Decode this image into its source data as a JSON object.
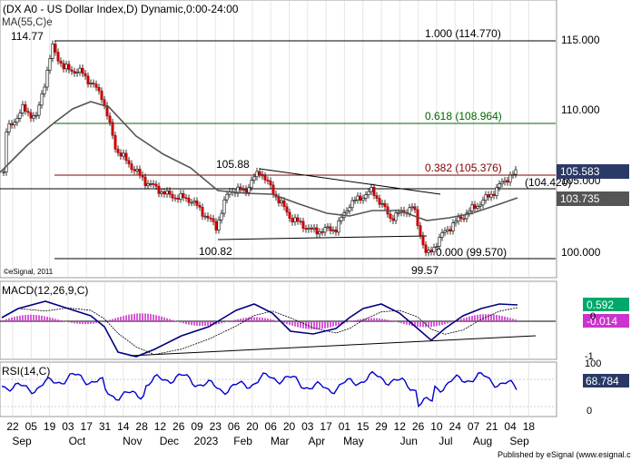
{
  "header": {
    "title": "(DX A0 - US Dollar Index,D) Dynamic,0:00-24:00",
    "ma_label": "MA(55,C)e",
    "copyright": "©eSignal, 2011"
  },
  "price_pane": {
    "price_labels": [
      {
        "text": "114.77",
        "name": "high-label"
      },
      {
        "text": "105.88",
        "name": "swing-high-label"
      },
      {
        "text": "100.82",
        "name": "swing-low-label"
      },
      {
        "text": "99.57",
        "name": "low-label"
      }
    ],
    "fib_labels": [
      {
        "text": "1.000 (114.770)",
        "name": "fib-1000-label",
        "color": "#000000"
      },
      {
        "text": "0.618 (108.964)",
        "name": "fib-0618-label",
        "color": "#006600"
      },
      {
        "text": "0.382 (105.376)",
        "name": "fib-0382-label",
        "color": "#800000"
      },
      {
        "text": "(104.420)",
        "name": "support-level-label",
        "color": "#000000"
      },
      {
        "text": "0.000 (99.570)",
        "name": "fib-0000-label",
        "color": "#000000"
      }
    ],
    "y_ticks": [
      "115.000",
      "110.000",
      "105.000",
      "100.000"
    ],
    "last_price": "105.583",
    "ma_value": "103.735"
  },
  "macd_pane": {
    "label": "MACD(12,26,9,C)",
    "value_macd": "0.592",
    "value_hist": "-0.014",
    "y_ticks": [
      "0",
      "-1"
    ]
  },
  "rsi_pane": {
    "label": "RSI(14,C)",
    "value": "68.784",
    "y_ticks": [
      "100",
      "0"
    ]
  },
  "x_axis": {
    "days": [
      "22",
      "05",
      "19",
      "03",
      "17",
      "31",
      "14",
      "28",
      "12",
      "26",
      "09",
      "23",
      "06",
      "20",
      "06",
      "20",
      "03",
      "17",
      "01",
      "15",
      "29",
      "12",
      "26",
      "10",
      "24",
      "07",
      "21",
      "04",
      "18"
    ],
    "months": [
      "Sep",
      "Oct",
      "Nov",
      "Dec",
      "2023",
      "Feb",
      "Mar",
      "Apr",
      "May",
      "Jun",
      "Jul",
      "Aug",
      "Sep"
    ]
  },
  "footer": {
    "published": "Published by eSignal (www.esignal.com)"
  },
  "colors": {
    "fib_1000": "#000000",
    "fib_0618": "#006600",
    "fib_0382": "#800000",
    "candle_up": "#ffffff",
    "candle_down": "#cc0000",
    "ma": "#555555",
    "macd_line": "#000080",
    "signal_line": "#000000",
    "histogram": "#cc33cc",
    "rsi_line": "#0000cc",
    "value_box": "#2a3a66",
    "positive_box": "#00a86b",
    "negative_box": "#cc33cc"
  }
}
